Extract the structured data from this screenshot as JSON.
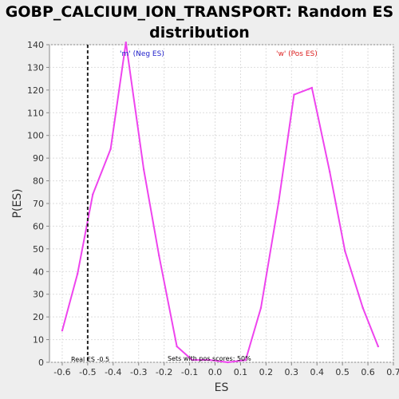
{
  "chart_data": {
    "type": "line",
    "title_lines": [
      "GOBP_CALCIUM_ION_TRANSPORT: Random ES",
      "distribution"
    ],
    "xlabel": "ES",
    "ylabel": "P(ES)",
    "xlim": [
      -0.65,
      0.7
    ],
    "ylim": [
      0,
      140
    ],
    "x_ticks": [
      "-0.6",
      "-0.5",
      "-0.4",
      "-0.3",
      "-0.2",
      "-0.1",
      "0.0",
      "0.1",
      "0.2",
      "0.3",
      "0.4",
      "0.5",
      "0.6",
      "0.7"
    ],
    "y_ticks": [
      "0",
      "10",
      "20",
      "30",
      "40",
      "50",
      "60",
      "70",
      "80",
      "90",
      "100",
      "110",
      "120",
      "130",
      "140"
    ],
    "grid": true,
    "series": [
      {
        "color": "#ee44ee",
        "x": [
          -0.6,
          -0.54,
          -0.48,
          -0.41,
          -0.35,
          -0.28,
          -0.22,
          -0.15,
          -0.09,
          -0.02,
          0.05,
          0.12,
          0.18,
          0.25,
          0.31,
          0.38,
          0.45,
          0.51,
          0.58,
          0.64
        ],
        "y": [
          14,
          39,
          74,
          94,
          141,
          85,
          47,
          7,
          1,
          1,
          0,
          1,
          24,
          71,
          118,
          121,
          84,
          49,
          24,
          7
        ]
      }
    ],
    "annotations": {
      "neg_label": "'m' (Neg ES)",
      "pos_label": "'w' (Pos ES)",
      "neg_color": "#2222cc",
      "pos_color": "#dd2222",
      "real_es_label": "Real ES -0.5",
      "real_es_value": -0.5,
      "sets_label": "Sets with pos scores: 50%"
    }
  }
}
